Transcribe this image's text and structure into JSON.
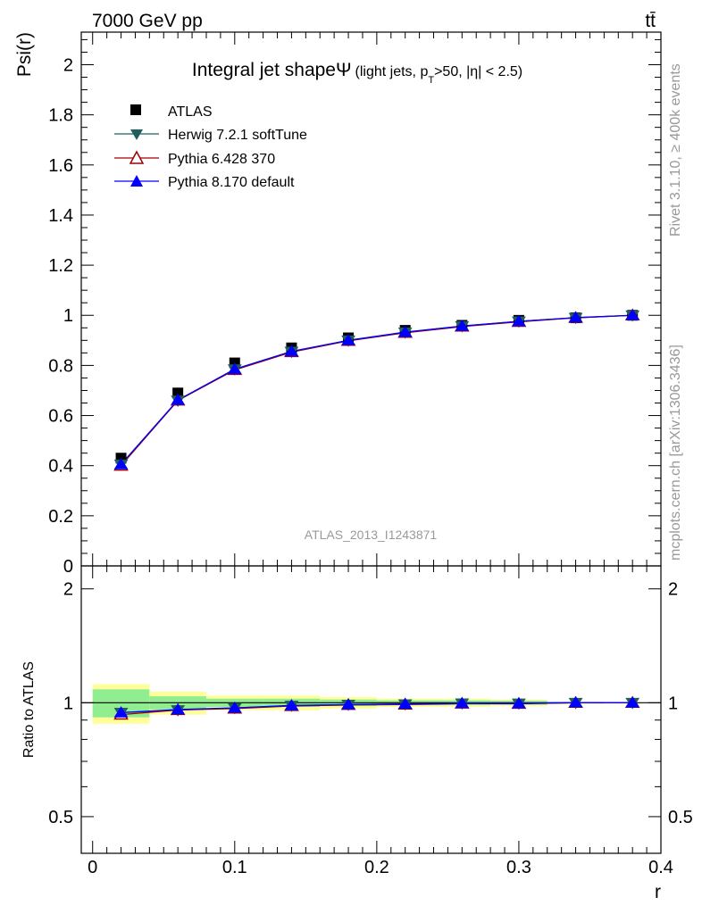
{
  "header": {
    "left": "7000 GeV pp",
    "right": "tt̄"
  },
  "side_text": {
    "rivet": "Rivet 3.1.10, ≥ 400k events",
    "mcplots": "mcplots.cern.ch [arXiv:1306.3436]"
  },
  "chart_data": {
    "type": "line",
    "title_main": "Integral jet shapeΨ",
    "title_sub_pre": "(light jets, p",
    "title_sub_sub": "T",
    "title_sub_post": ">50, |η| < 2.5)",
    "watermark": "ATLAS_2013_I1243871",
    "x": [
      0.02,
      0.06,
      0.1,
      0.14,
      0.18,
      0.22,
      0.26,
      0.3,
      0.34,
      0.38
    ],
    "xlabel": "r",
    "ylabel": "Psi(r)",
    "ratio_ylabel": "Ratio to ATLAS",
    "xlim": [
      -0.008,
      0.4
    ],
    "ylim": [
      0,
      2.13
    ],
    "ratio_ylim": [
      0.4,
      2.3
    ],
    "x_ticks": [
      "0",
      "0.1",
      "0.2",
      "0.3",
      "0.4"
    ],
    "y_ticks": [
      "0",
      "0.2",
      "0.4",
      "0.6",
      "0.8",
      "1",
      "1.2",
      "1.4",
      "1.6",
      "1.8",
      "2"
    ],
    "ratio_ticks": [
      "0.5",
      "1",
      "2"
    ],
    "legend_placement": "top-left",
    "data": {
      "name": "ATLAS",
      "values": [
        0.43,
        0.69,
        0.81,
        0.87,
        0.91,
        0.94,
        0.96,
        0.98,
        0.99,
        1.0
      ],
      "band_inner": [
        0.085,
        0.04,
        0.025,
        0.025,
        0.02,
        0.015,
        0.015,
        0.012,
        0.005,
        0.0
      ],
      "band_outer": [
        0.12,
        0.07,
        0.045,
        0.045,
        0.035,
        0.025,
        0.025,
        0.02,
        0.005,
        0.0
      ]
    },
    "series": [
      {
        "name": "Herwig 7.2.1 softTune",
        "color": "#1f5f5f",
        "marker": "triangle-down",
        "values": [
          0.405,
          0.66,
          0.785,
          0.855,
          0.9,
          0.932,
          0.957,
          0.976,
          0.99,
          1.0
        ]
      },
      {
        "name": "Pythia 6.428 370",
        "color": "#a00000",
        "marker": "triangle-up-open",
        "values": [
          0.4,
          0.66,
          0.782,
          0.853,
          0.898,
          0.93,
          0.955,
          0.974,
          0.99,
          1.0
        ]
      },
      {
        "name": "Pythia 8.170 default",
        "color": "#0000ff",
        "marker": "triangle-up",
        "values": [
          0.405,
          0.662,
          0.785,
          0.856,
          0.9,
          0.933,
          0.957,
          0.976,
          0.991,
          1.0
        ]
      }
    ],
    "colors": {
      "band_inner": "#90ee90",
      "band_outer": "#ffff99",
      "data": "#000000"
    }
  }
}
